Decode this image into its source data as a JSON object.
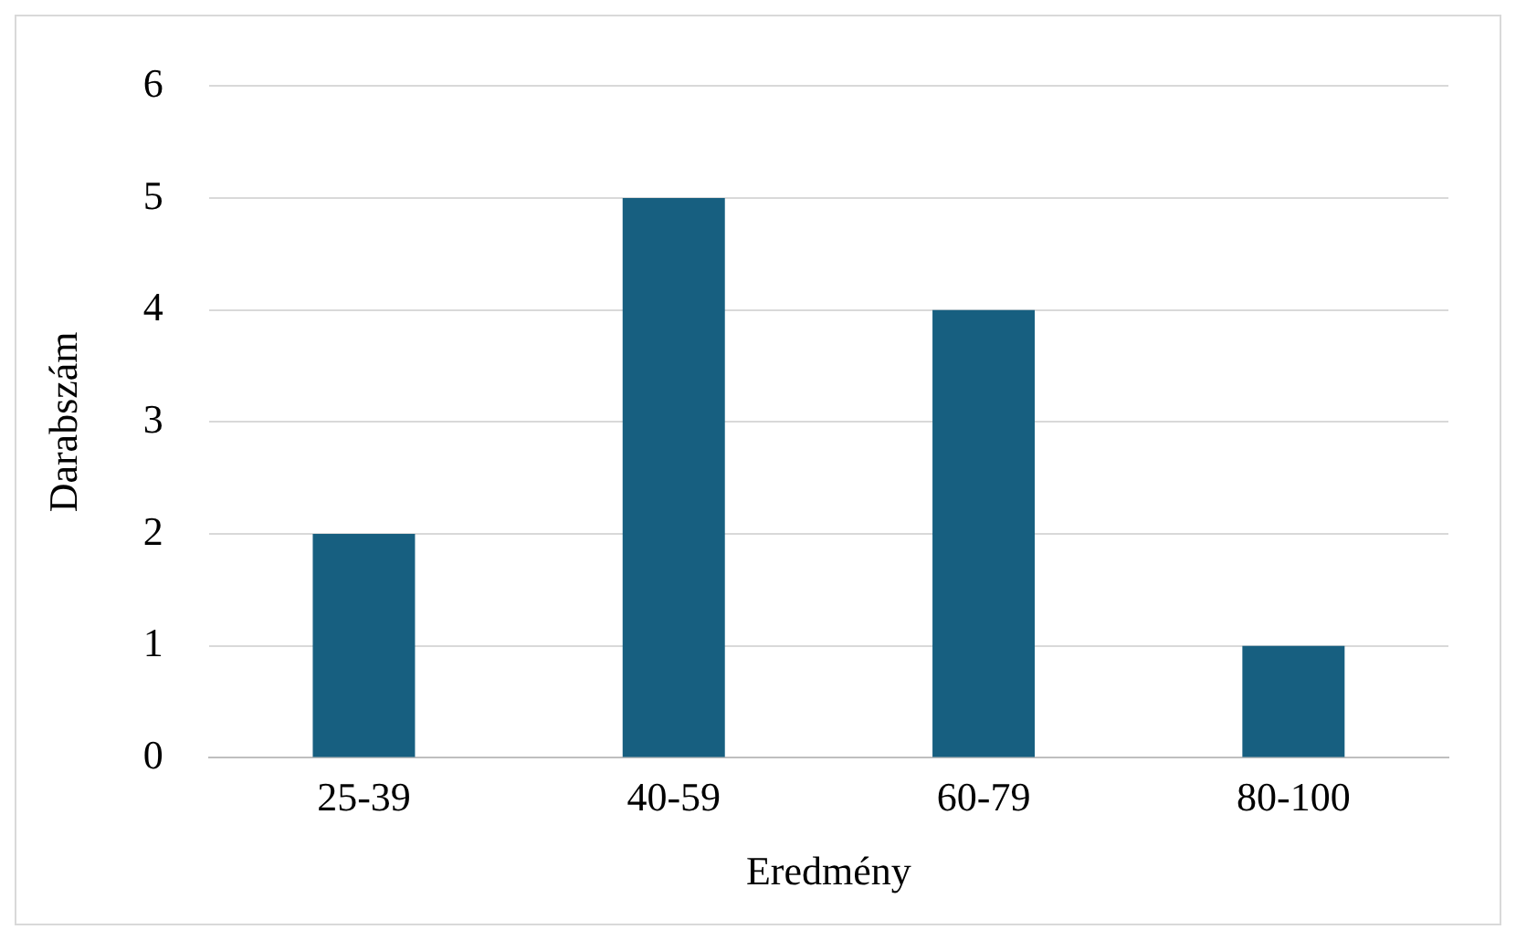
{
  "chart_data": {
    "type": "bar",
    "xlabel": "Eredmény",
    "ylabel": "Darabszám",
    "categories": [
      "25-39",
      "40-59",
      "60-79",
      "80-100"
    ],
    "values": [
      2,
      5,
      4,
      1
    ],
    "color": "#175f80",
    "ylim": [
      0,
      6
    ],
    "yticks": [
      0,
      1,
      2,
      3,
      4,
      5,
      6
    ],
    "grid": "y",
    "legend": false
  }
}
